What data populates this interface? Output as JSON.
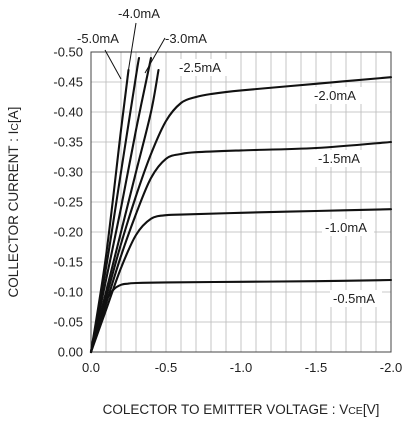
{
  "chart_data": {
    "type": "line",
    "xlabel": "COLECTOR TO EMITTER VOLTAGE : V",
    "xlabel_sub": "CE",
    "xlabel_unit": "[V]",
    "ylabel": "COLLECTOR CURRENT : I",
    "ylabel_sub": "C",
    "ylabel_unit": "[A]",
    "xlim": [
      0.0,
      -2.0
    ],
    "ylim": [
      0.0,
      -0.5
    ],
    "grid": true,
    "x_ticks": [
      "0.0",
      "-0.5",
      "-1.0",
      "-1.5",
      "-2.0"
    ],
    "y_ticks": [
      "0.00",
      "-0.05",
      "-0.10",
      "-0.15",
      "-0.20",
      "-0.25",
      "-0.30",
      "-0.35",
      "-0.40",
      "-0.45",
      "-0.50"
    ],
    "series": [
      {
        "name": "-0.5mA",
        "x": [
          0,
          -0.05,
          -0.1,
          -0.15,
          -0.2,
          -0.25,
          -0.3,
          -0.5,
          -1.0,
          -1.5,
          -2.0
        ],
        "y": [
          0,
          -0.05,
          -0.085,
          -0.104,
          -0.112,
          -0.114,
          -0.115,
          -0.116,
          -0.117,
          -0.118,
          -0.12
        ]
      },
      {
        "name": "-1.0mA",
        "x": [
          0,
          -0.1,
          -0.2,
          -0.3,
          -0.4,
          -0.5,
          -0.6,
          -1.0,
          -1.5,
          -2.0
        ],
        "y": [
          0,
          -0.07,
          -0.14,
          -0.195,
          -0.222,
          -0.228,
          -0.229,
          -0.232,
          -0.235,
          -0.238
        ]
      },
      {
        "name": "-1.5mA",
        "x": [
          0,
          -0.1,
          -0.2,
          -0.3,
          -0.4,
          -0.5,
          -0.6,
          -0.7,
          -1.0,
          -1.5,
          -2.0
        ],
        "y": [
          0,
          -0.08,
          -0.16,
          -0.23,
          -0.29,
          -0.322,
          -0.33,
          -0.333,
          -0.336,
          -0.34,
          -0.35
        ]
      },
      {
        "name": "-2.0mA",
        "x": [
          0,
          -0.1,
          -0.2,
          -0.3,
          -0.4,
          -0.5,
          -0.6,
          -0.7,
          -0.8,
          -1.0,
          -1.5,
          -2.0
        ],
        "y": [
          0,
          -0.09,
          -0.18,
          -0.26,
          -0.33,
          -0.385,
          -0.415,
          -0.425,
          -0.43,
          -0.436,
          -0.447,
          -0.458
        ]
      },
      {
        "name": "-2.5mA",
        "x": [
          0,
          -0.1,
          -0.2,
          -0.3,
          -0.4,
          -0.45
        ],
        "y": [
          0,
          -0.1,
          -0.2,
          -0.3,
          -0.4,
          -0.47
        ]
      },
      {
        "name": "-3.0mA",
        "x": [
          0,
          -0.1,
          -0.2,
          -0.3,
          -0.4
        ],
        "y": [
          0,
          -0.12,
          -0.24,
          -0.37,
          -0.49
        ]
      },
      {
        "name": "-4.0mA",
        "x": [
          0,
          -0.1,
          -0.2,
          -0.3,
          -0.32
        ],
        "y": [
          0,
          -0.14,
          -0.3,
          -0.46,
          -0.49
        ]
      },
      {
        "name": "-5.0mA",
        "x": [
          0,
          -0.1,
          -0.2,
          -0.25
        ],
        "y": [
          0,
          -0.16,
          -0.37,
          -0.47
        ]
      }
    ]
  }
}
